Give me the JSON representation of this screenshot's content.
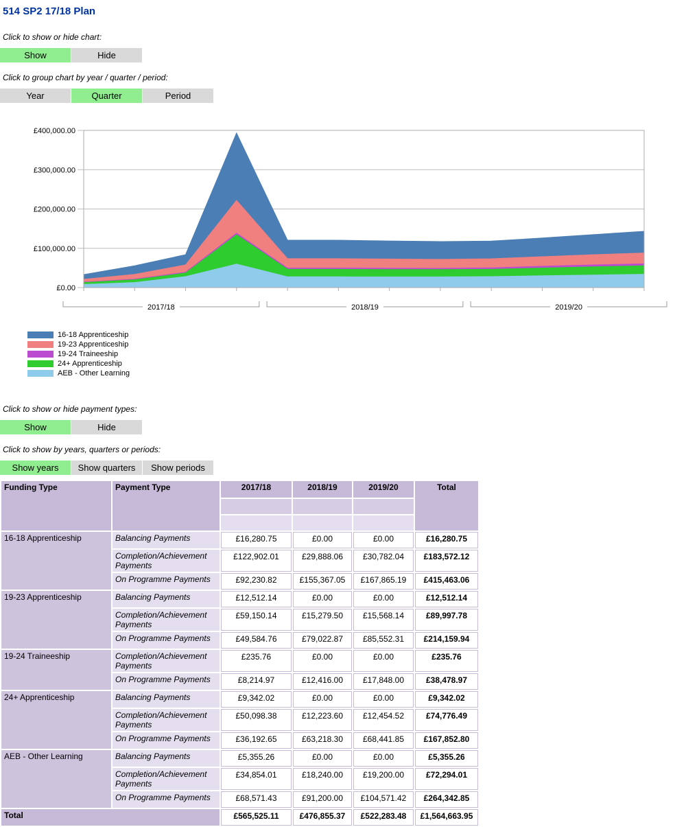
{
  "page": {
    "title": "514 SP2 17/18 Plan"
  },
  "colors": {
    "active_button": "#90EE90",
    "inactive_button": "#D9D9D9",
    "title_text": "#0033A0",
    "table_header": "#C6BAD8",
    "table_sub1": "#D6CDE4",
    "table_sub2": "#E4DEEE",
    "funding_cell": "#CDC3DD",
    "payment_cell": "#E4DEEE"
  },
  "controls": {
    "chart_toggle": {
      "label": "Click to show or hide chart:",
      "buttons": [
        {
          "name": "show-chart-button",
          "label": "Show",
          "active": true
        },
        {
          "name": "hide-chart-button",
          "label": "Hide",
          "active": false
        }
      ]
    },
    "chart_group": {
      "label": "Click to group chart by year / quarter / period:",
      "buttons": [
        {
          "name": "group-year-button",
          "label": "Year",
          "active": false
        },
        {
          "name": "group-quarter-button",
          "label": "Quarter",
          "active": true
        },
        {
          "name": "group-period-button",
          "label": "Period",
          "active": false
        }
      ]
    },
    "payment_toggle": {
      "label": "Click to show or hide payment types:",
      "buttons": [
        {
          "name": "show-payment-types-button",
          "label": "Show",
          "active": true
        },
        {
          "name": "hide-payment-types-button",
          "label": "Hide",
          "active": false
        }
      ]
    },
    "table_group": {
      "label": "Click to show by years, quarters or periods:",
      "buttons": [
        {
          "name": "show-years-button",
          "label": "Show years",
          "active": true
        },
        {
          "name": "show-quarters-button",
          "label": "Show quarters",
          "active": false
        },
        {
          "name": "show-periods-button",
          "label": "Show periods",
          "active": false
        }
      ]
    }
  },
  "chart_data": {
    "type": "area",
    "stacked": true,
    "grouping": "quarter",
    "ylim": [
      0,
      400000
    ],
    "y_ticks": [
      "£0.00",
      "£100,000.00",
      "£200,000.00",
      "£300,000.00",
      "£400,000.00"
    ],
    "year_groups": [
      "2017/18",
      "2018/19",
      "2019/20"
    ],
    "points_per_group": 4,
    "legend_position": "bottom-left",
    "series": [
      {
        "name": "16-18 Apprenticeship",
        "color": "#4A7EB5",
        "values": [
          12000,
          22000,
          26000,
          171400,
          47000,
          47000,
          46000,
          45300,
          45000,
          47500,
          51000,
          55100
        ]
      },
      {
        "name": "19-23 Apprenticeship",
        "color": "#F08080",
        "values": [
          7000,
          12000,
          18700,
          83500,
          24000,
          24000,
          23500,
          22800,
          23000,
          24500,
          26000,
          27600
        ]
      },
      {
        "name": "19-24 Traineeship",
        "color": "#BB4BCF",
        "values": [
          1000,
          1500,
          2000,
          3950,
          3100,
          3100,
          3100,
          3116,
          3800,
          4300,
          4800,
          4948
        ]
      },
      {
        "name": "24+ Apprenticeship",
        "color": "#2ECC2E",
        "values": [
          5000,
          7000,
          9000,
          74600,
          19000,
          19000,
          18800,
          18600,
          18500,
          19800,
          20900,
          21700
        ]
      },
      {
        "name": "AEB - Other Learning",
        "color": "#8FCBEA",
        "values": [
          8000,
          13000,
          28000,
          59800,
          27500,
          27500,
          27200,
          27200,
          28000,
          30000,
          32000,
          33800
        ]
      }
    ]
  },
  "table": {
    "headers": {
      "funding": "Funding Type",
      "payment": "Payment Type",
      "years": [
        "2017/18",
        "2018/19",
        "2019/20"
      ],
      "total": "Total"
    },
    "groups": [
      {
        "funding": "16-18 Apprenticeship",
        "rows": [
          {
            "payment": "Balancing Payments",
            "values": [
              "£16,280.75",
              "£0.00",
              "£0.00"
            ],
            "total": "£16,280.75"
          },
          {
            "payment": "Completion/Achievement Payments",
            "values": [
              "£122,902.01",
              "£29,888.06",
              "£30,782.04"
            ],
            "total": "£183,572.12"
          },
          {
            "payment": "On Programme Payments",
            "values": [
              "£92,230.82",
              "£155,367.05",
              "£167,865.19"
            ],
            "total": "£415,463.06"
          }
        ]
      },
      {
        "funding": "19-23 Apprenticeship",
        "rows": [
          {
            "payment": "Balancing Payments",
            "values": [
              "£12,512.14",
              "£0.00",
              "£0.00"
            ],
            "total": "£12,512.14"
          },
          {
            "payment": "Completion/Achievement Payments",
            "values": [
              "£59,150.14",
              "£15,279.50",
              "£15,568.14"
            ],
            "total": "£89,997.78"
          },
          {
            "payment": "On Programme Payments",
            "values": [
              "£49,584.76",
              "£79,022.87",
              "£85,552.31"
            ],
            "total": "£214,159.94"
          }
        ]
      },
      {
        "funding": "19-24 Traineeship",
        "rows": [
          {
            "payment": "Completion/Achievement Payments",
            "values": [
              "£235.76",
              "£0.00",
              "£0.00"
            ],
            "total": "£235.76"
          },
          {
            "payment": "On Programme Payments",
            "values": [
              "£8,214.97",
              "£12,416.00",
              "£17,848.00"
            ],
            "total": "£38,478.97"
          }
        ]
      },
      {
        "funding": "24+ Apprenticeship",
        "rows": [
          {
            "payment": "Balancing Payments",
            "values": [
              "£9,342.02",
              "£0.00",
              "£0.00"
            ],
            "total": "£9,342.02"
          },
          {
            "payment": "Completion/Achievement Payments",
            "values": [
              "£50,098.38",
              "£12,223.60",
              "£12,454.52"
            ],
            "total": "£74,776.49"
          },
          {
            "payment": "On Programme Payments",
            "values": [
              "£36,192.65",
              "£63,218.30",
              "£68,441.85"
            ],
            "total": "£167,852.80"
          }
        ]
      },
      {
        "funding": "AEB - Other Learning",
        "rows": [
          {
            "payment": "Balancing Payments",
            "values": [
              "£5,355.26",
              "£0.00",
              "£0.00"
            ],
            "total": "£5,355.26"
          },
          {
            "payment": "Completion/Achievement Payments",
            "values": [
              "£34,854.01",
              "£18,240.00",
              "£19,200.00"
            ],
            "total": "£72,294.01"
          },
          {
            "payment": "On Programme Payments",
            "values": [
              "£68,571.43",
              "£91,200.00",
              "£104,571.42"
            ],
            "total": "£264,342.85"
          }
        ]
      }
    ],
    "total_row": {
      "label": "Total",
      "values": [
        "£565,525.11",
        "£476,855.37",
        "£522,283.48"
      ],
      "total": "£1,564,663.95"
    }
  }
}
